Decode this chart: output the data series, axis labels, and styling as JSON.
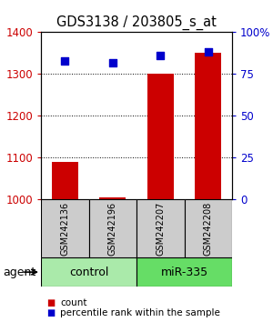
{
  "title": "GDS3138 / 203805_s_at",
  "samples": [
    "GSM242136",
    "GSM242196",
    "GSM242207",
    "GSM242208"
  ],
  "counts": [
    1090,
    1005,
    1300,
    1350
  ],
  "percentile_ranks": [
    83,
    82,
    86,
    88
  ],
  "ylim_left": [
    1000,
    1400
  ],
  "ylim_right": [
    0,
    100
  ],
  "yticks_left": [
    1000,
    1100,
    1200,
    1300,
    1400
  ],
  "yticks_right": [
    0,
    25,
    50,
    75,
    100
  ],
  "yticklabels_right": [
    "0",
    "25",
    "50",
    "75",
    "100%"
  ],
  "bar_color": "#cc0000",
  "dot_color": "#0000cc",
  "group_color_control": "#aaeaaa",
  "group_color_mir": "#66dd66",
  "left_tick_color": "#cc0000",
  "right_tick_color": "#0000cc",
  "agent_label": "agent",
  "legend_count_label": "count",
  "legend_pct_label": "percentile rank within the sample",
  "bar_width": 0.55,
  "dot_size": 35,
  "background_color": "#ffffff",
  "sample_box_color": "#cccccc"
}
